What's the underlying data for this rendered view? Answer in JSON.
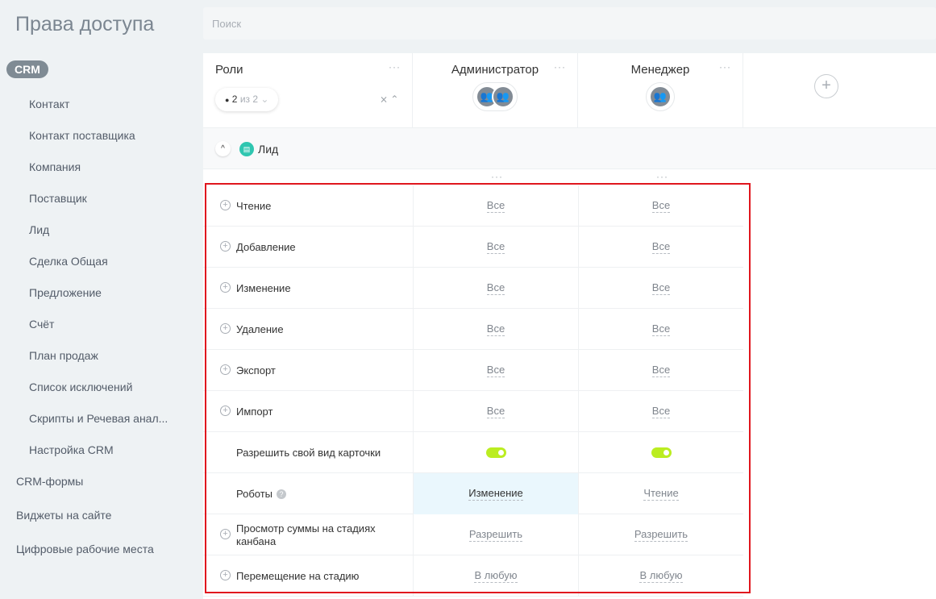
{
  "title": "Права доступа",
  "search_placeholder": "Поиск",
  "sidebar": {
    "active": "CRM",
    "items": [
      "Контакт",
      "Контакт поставщика",
      "Компания",
      "Поставщик",
      "Лид",
      "Сделка Общая",
      "Предложение",
      "Счёт",
      "План продаж",
      "Список исключений",
      "Скрипты и Речевая анал...",
      "Настройка CRM"
    ],
    "top_items": [
      "CRM-формы",
      "Виджеты на сайте",
      "Цифровые рабочие места"
    ]
  },
  "header": {
    "roles_label": "Роли",
    "filter_count": "2",
    "filter_of": "из 2",
    "roles": [
      "Администратор",
      "Менеджер"
    ],
    "add_icon": "plus-icon"
  },
  "section": {
    "name": "Лид",
    "icon": "lead-icon",
    "color": "#2fc6b0"
  },
  "rows": [
    {
      "label": "Чтение",
      "expandable": true,
      "values": [
        "Все",
        "Все"
      ]
    },
    {
      "label": "Добавление",
      "expandable": true,
      "values": [
        "Все",
        "Все"
      ]
    },
    {
      "label": "Изменение",
      "expandable": true,
      "values": [
        "Все",
        "Все"
      ]
    },
    {
      "label": "Удаление",
      "expandable": true,
      "values": [
        "Все",
        "Все"
      ]
    },
    {
      "label": "Экспорт",
      "expandable": true,
      "values": [
        "Все",
        "Все"
      ]
    },
    {
      "label": "Импорт",
      "expandable": true,
      "values": [
        "Все",
        "Все"
      ]
    },
    {
      "label": "Разрешить свой вид карточки",
      "expandable": false,
      "toggle": [
        true,
        true
      ]
    },
    {
      "label": "Роботы",
      "expandable": false,
      "help": true,
      "values": [
        "Изменение",
        "Чтение"
      ]
    },
    {
      "label": "Просмотр суммы на стадиях канбана",
      "expandable": true,
      "values": [
        "Разрешить",
        "Разрешить"
      ]
    },
    {
      "label": "Перемещение на стадию",
      "expandable": true,
      "values": [
        "В любую",
        "В любую"
      ]
    }
  ],
  "colors": {
    "toggle_on": "#bbed21",
    "highlight": "#eaf7fd",
    "selection_box": "#e0161e"
  }
}
